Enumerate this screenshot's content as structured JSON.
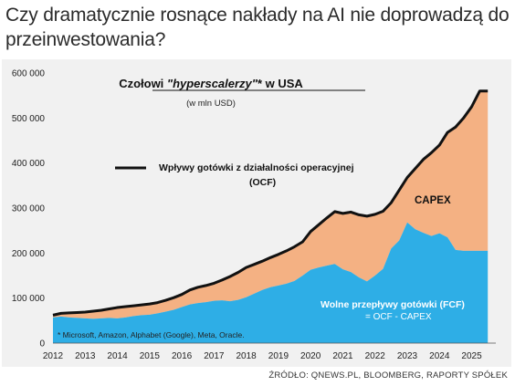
{
  "headline": "Czy dramatycznie rosnące nakłady na AI nie doprowadzą do przeinwestowania?",
  "source": "ŹRÓDŁO: QNEWS.PL, BLOOMBERG, RAPORTY SPÓŁEK",
  "colors": {
    "ocf_line": "#111111",
    "capex_area": "#f4b183",
    "fcf_area": "#2eaee6",
    "background": "#f1f1f1"
  },
  "chart_data": {
    "type": "area",
    "title": "Czołowi \"hyperscalerzy\"* w USA",
    "title_prefix": "Czołowi ",
    "title_italic": "\"hyperscalerzy\"",
    "title_suffix": "* w USA",
    "subtitle": "(w mln USD)",
    "footnote": "* Microsoft, Amazon, Alphabet (Google), Meta, Oracle.",
    "legend_line_line1": "Wpływy gotówki z działalności operacyjnej",
    "legend_line_line2": "(OCF)",
    "capex_label": "CAPEX",
    "fcf_label_line1": "Wolne przepływy gotówki (FCF)",
    "fcf_label_line2": "= OCF - CAPEX",
    "ylim": [
      0,
      600000
    ],
    "y_ticks": [
      0,
      100000,
      200000,
      300000,
      400000,
      500000,
      600000
    ],
    "y_tick_labels": [
      "0",
      "100 000",
      "200 000",
      "300 000",
      "400 000",
      "500 000",
      "600 000"
    ],
    "xlim": [
      2012,
      2025.75
    ],
    "x_ticks": [
      2012,
      2013,
      2014,
      2015,
      2016,
      2017,
      2018,
      2019,
      2020,
      2021,
      2022,
      2023,
      2024,
      2025
    ],
    "x_tick_labels": [
      "2012",
      "2013",
      "2014",
      "2015",
      "2016",
      "2017",
      "2018",
      "2019",
      "2020",
      "2021",
      "2022",
      "2023",
      "2024",
      "2025"
    ],
    "x": [
      2012.0,
      2012.25,
      2012.5,
      2012.75,
      2013.0,
      2013.25,
      2013.5,
      2013.75,
      2014.0,
      2014.25,
      2014.5,
      2014.75,
      2015.0,
      2015.25,
      2015.5,
      2015.75,
      2016.0,
      2016.25,
      2016.5,
      2016.75,
      2017.0,
      2017.25,
      2017.5,
      2017.75,
      2018.0,
      2018.25,
      2018.5,
      2018.75,
      2019.0,
      2019.25,
      2019.5,
      2019.75,
      2020.0,
      2020.25,
      2020.5,
      2020.75,
      2021.0,
      2021.25,
      2021.5,
      2021.75,
      2022.0,
      2022.25,
      2022.5,
      2022.75,
      2023.0,
      2023.25,
      2023.5,
      2023.75,
      2024.0,
      2024.25,
      2024.5,
      2024.75,
      2025.0,
      2025.25,
      2025.5
    ],
    "series": [
      {
        "name": "Wpływy gotówki z działalności operacyjnej (OCF)",
        "values": [
          62000,
          66000,
          67000,
          68000,
          69000,
          71000,
          73000,
          76000,
          79000,
          81000,
          83000,
          85000,
          87000,
          90000,
          95000,
          101000,
          108000,
          118000,
          124000,
          128000,
          133000,
          140000,
          148000,
          157000,
          168000,
          175000,
          182000,
          190000,
          197000,
          205000,
          214000,
          225000,
          248000,
          263000,
          278000,
          292000,
          288000,
          291000,
          285000,
          282000,
          286000,
          293000,
          312000,
          340000,
          368000,
          388000,
          408000,
          423000,
          440000,
          468000,
          480000,
          500000,
          525000,
          560000,
          560000
        ]
      },
      {
        "name": "Wolne przepływy gotówki (FCF)",
        "values": [
          57000,
          59000,
          57000,
          56000,
          55000,
          54000,
          55000,
          56000,
          55000,
          57000,
          60000,
          62000,
          63000,
          66000,
          70000,
          74000,
          80000,
          86000,
          89000,
          91000,
          94000,
          95000,
          93000,
          96000,
          102000,
          110000,
          118000,
          124000,
          128000,
          132000,
          138000,
          150000,
          163000,
          168000,
          172000,
          176000,
          164000,
          158000,
          146000,
          137000,
          150000,
          165000,
          210000,
          228000,
          268000,
          253000,
          245000,
          238000,
          244000,
          235000,
          207000,
          205000,
          205000,
          205000,
          205000
        ]
      },
      {
        "name": "CAPEX",
        "values": [
          5000,
          7000,
          10000,
          12000,
          14000,
          17000,
          18000,
          20000,
          24000,
          24000,
          23000,
          23000,
          24000,
          24000,
          25000,
          27000,
          28000,
          32000,
          35000,
          37000,
          39000,
          45000,
          55000,
          61000,
          66000,
          65000,
          64000,
          66000,
          69000,
          73000,
          76000,
          75000,
          85000,
          95000,
          106000,
          116000,
          124000,
          133000,
          139000,
          145000,
          136000,
          128000,
          102000,
          112000,
          100000,
          135000,
          163000,
          185000,
          196000,
          233000,
          273000,
          295000,
          320000,
          355000,
          355000
        ]
      }
    ],
    "grid": false,
    "legend_placement": "inline labels"
  }
}
